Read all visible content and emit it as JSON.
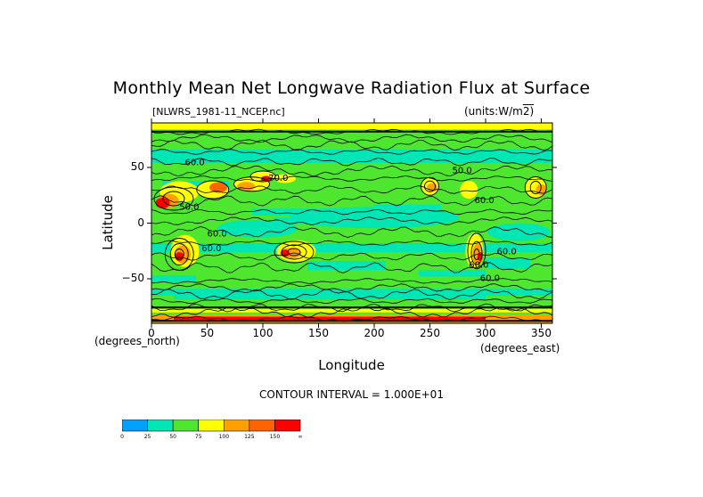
{
  "chart_data": {
    "type": "heatmap",
    "title": "Monthly Mean Net Longwave Radiation Flux at Surface",
    "subtitle": "[NLWRS_1981-11_NCEP.nc]",
    "units_label": "(units:W/m^2)",
    "xlabel": "Longitude",
    "ylabel": "Latitude",
    "x_unit_label": "(degrees_east)",
    "y_unit_label": "(degrees_north)",
    "xlim": [
      0,
      360
    ],
    "ylim": [
      -90,
      90
    ],
    "x_ticks": [
      "0",
      "50",
      "100",
      "150",
      "200",
      "250",
      "300",
      "350"
    ],
    "x_tick_values": [
      0,
      50,
      100,
      150,
      200,
      250,
      300,
      350
    ],
    "y_ticks": [
      "50",
      "0",
      "−50"
    ],
    "y_tick_values": [
      50,
      0,
      -50
    ],
    "contour_interval_text": "CONTOUR INTERVAL = 1.000E+01",
    "contour_labels": [
      "60.0",
      "50.0",
      "70.0",
      "60.0",
      "60.0",
      "60.0",
      "60.0",
      "60.0",
      "50.0",
      "60.0"
    ],
    "legend": {
      "labels": [
        "0",
        "25",
        "50",
        "75",
        "100",
        "125",
        "150",
        "∞"
      ],
      "colors": [
        "#00a0ff",
        "#00e6b4",
        "#4ee62e",
        "#ffff00",
        "#ffa000",
        "#ff6400",
        "#ff0000"
      ]
    }
  }
}
